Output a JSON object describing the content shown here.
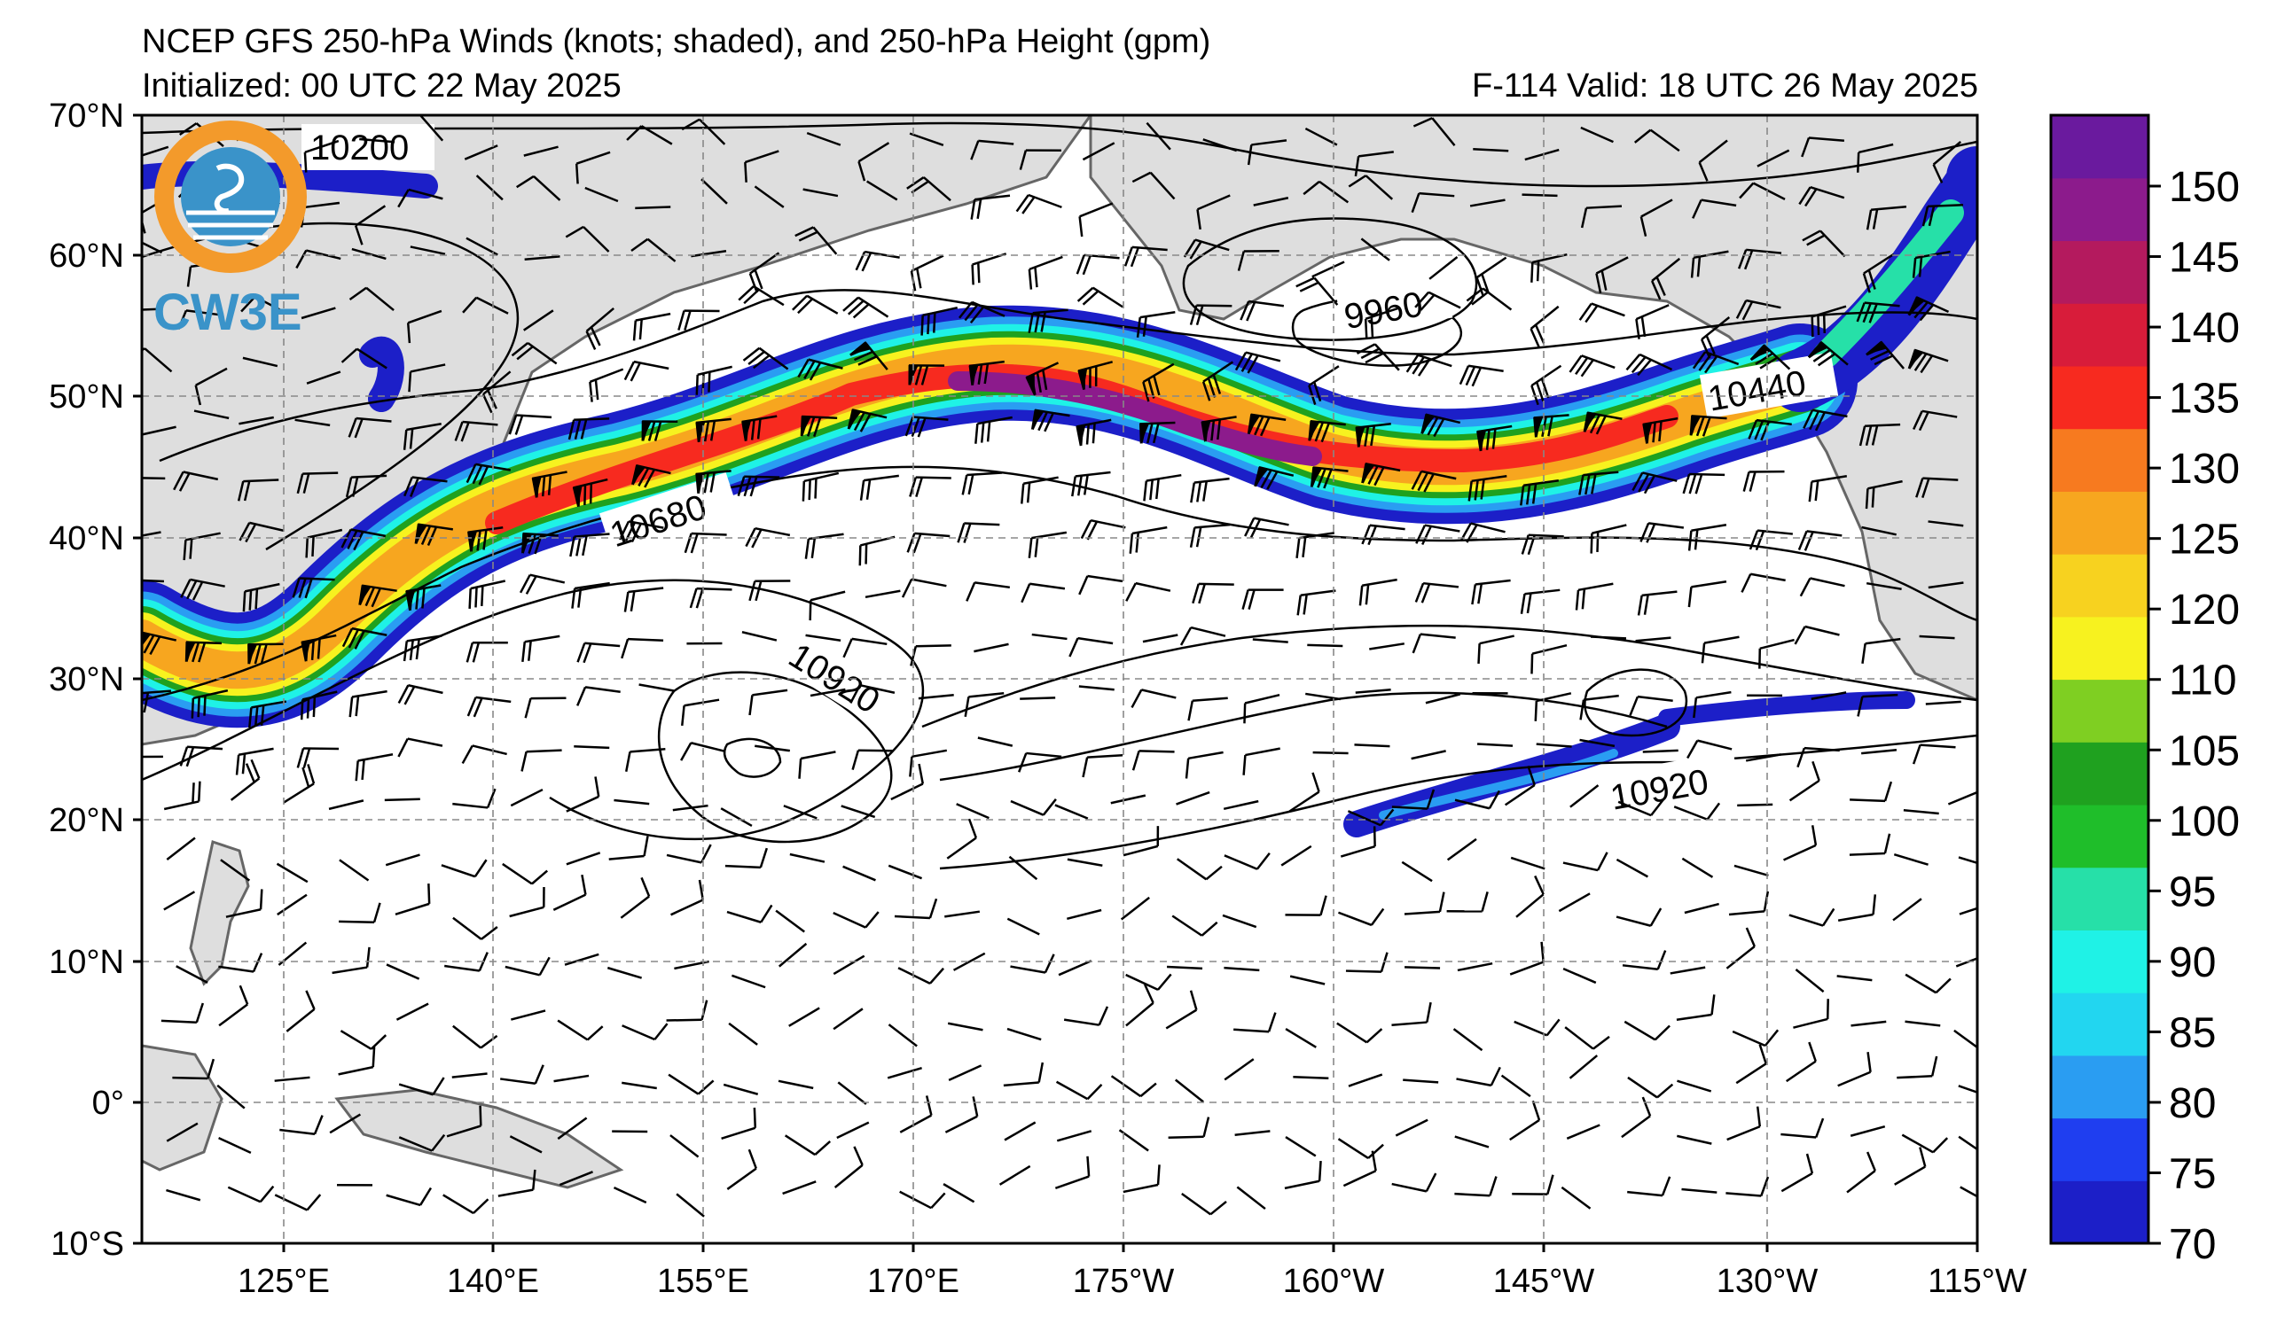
{
  "header": {
    "title_line1": "NCEP GFS 250-hPa Winds (knots; shaded), and 250-hPa Height (gpm)",
    "title_line2": "Initialized: 00 UTC 22 May 2025",
    "valid": "F-114  Valid: 18 UTC 26 May 2025"
  },
  "logo": {
    "text": "CW3E",
    "colors": {
      "ring": "#f39a2b",
      "globe": "#3a93c9"
    }
  },
  "axes": {
    "lat_labels": [
      "70°N",
      "60°N",
      "50°N",
      "40°N",
      "30°N",
      "20°N",
      "10°N",
      "0°",
      "10°S"
    ],
    "lon_labels": [
      "125°E",
      "140°E",
      "155°E",
      "170°E",
      "175°W",
      "160°W",
      "145°W",
      "130°W",
      "115°W"
    ]
  },
  "contour_labels": [
    "10200",
    "9960",
    "10440",
    "10680",
    "10920",
    "10920"
  ],
  "colorbar": {
    "ticks": [
      "150",
      "145",
      "140",
      "135",
      "130",
      "125",
      "120",
      "110",
      "105",
      "100",
      "95",
      "90",
      "85",
      "80",
      "75",
      "70"
    ],
    "colors": [
      "#1c1fc8",
      "#1f3ef0",
      "#2a9df2",
      "#22d6f0",
      "#1ff2e6",
      "#26e0a8",
      "#1fbe2a",
      "#1fa11f",
      "#7fcf22",
      "#f7f21f",
      "#f7d21f",
      "#f7a61f",
      "#f77a1f",
      "#f72a1f",
      "#d81c3a",
      "#b41a5e",
      "#8c1b8c",
      "#6a1a9e"
    ]
  },
  "chart_data": {
    "type": "map",
    "projection": "cylindrical",
    "lon_range": [
      "110°E",
      "115°W"
    ],
    "lat_range": [
      "10°S",
      "70°N"
    ],
    "fields": [
      "250-hPa wind speed (knots, shaded)",
      "250-hPa geopotential height (gpm, contours)",
      "wind barbs"
    ],
    "shading_range_knots": [
      70,
      155
    ],
    "height_contours_gpm": [
      9960,
      10200,
      10440,
      10680,
      10920
    ]
  }
}
